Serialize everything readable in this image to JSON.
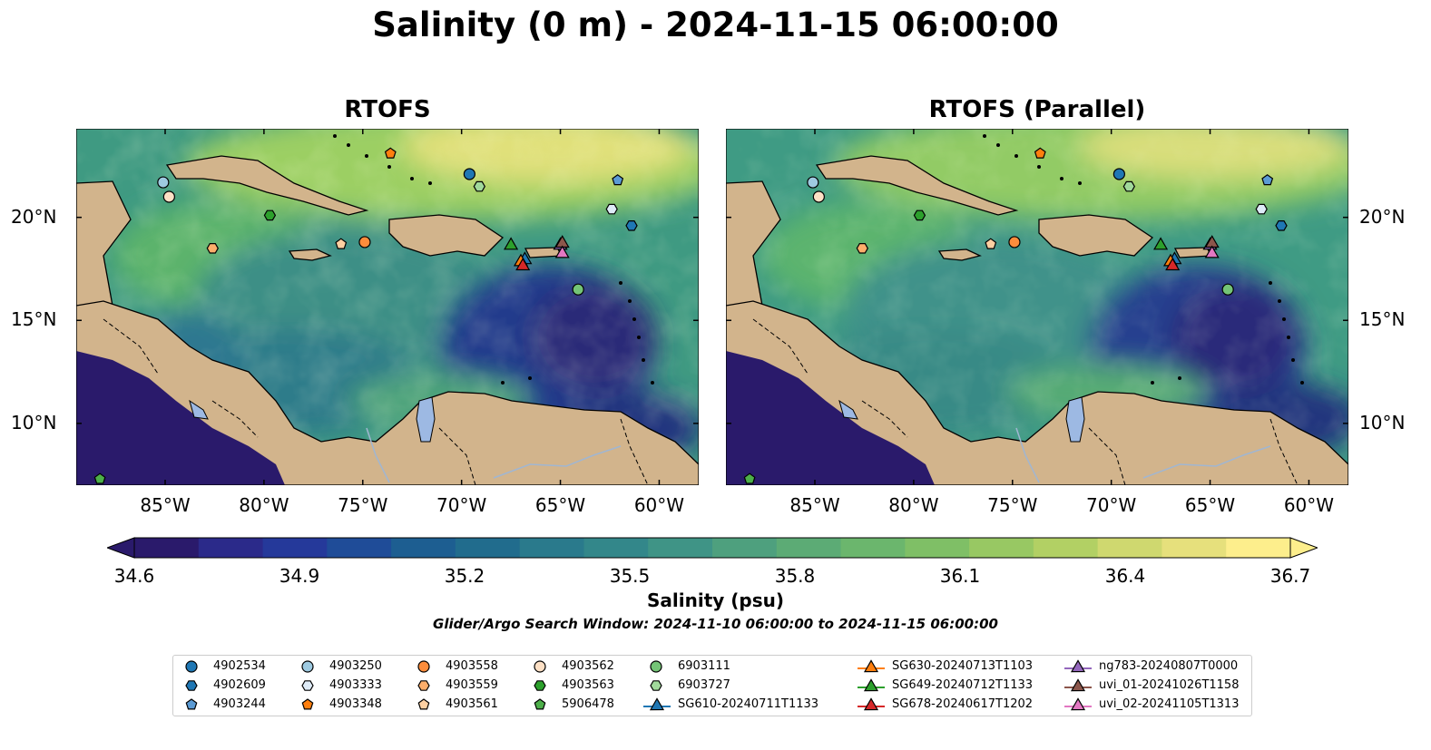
{
  "suptitle": "Salinity (0 m) - 2024-11-15 06:00:00",
  "panels": {
    "left_title": "RTOFS",
    "right_title": "RTOFS (Parallel)"
  },
  "axes": {
    "lon_labels": [
      "85°W",
      "80°W",
      "75°W",
      "70°W",
      "65°W",
      "60°W"
    ],
    "lat_labels": [
      "20°N",
      "15°N",
      "10°N"
    ],
    "lon_values": [
      -85,
      -80,
      -75,
      -70,
      -65,
      -60
    ],
    "lat_values": [
      20,
      15,
      10
    ],
    "lon_range": [
      -89.5,
      -58.0
    ],
    "lat_range": [
      7.0,
      24.3
    ]
  },
  "colorbar": {
    "label": "Salinity (psu)",
    "tick_labels": [
      "34.6",
      "34.9",
      "35.2",
      "35.5",
      "35.8",
      "36.1",
      "36.4",
      "36.7"
    ],
    "tick_values": [
      34.6,
      34.9,
      35.2,
      35.5,
      35.8,
      36.1,
      36.4,
      36.7
    ],
    "range": [
      34.6,
      36.7
    ],
    "colormap": "haline",
    "extend": "both"
  },
  "search_window": "Glider/Argo Search Window: 2024-11-10 06:00:00 to 2024-11-15 06:00:00",
  "colors": {
    "land": "#d2b48c",
    "lakes": "#9db9e3",
    "rivers": "#a0b6d2",
    "pacific_low": "#2a1a6b"
  },
  "chart_data": {
    "type": "heatmap",
    "title": "Salinity (0 m) - 2024-11-15 06:00:00",
    "variable": "Salinity (psu)",
    "xlim": [
      -89.5,
      -58.0
    ],
    "ylim": [
      7.0,
      24.3
    ],
    "legend_placement": "bottom",
    "platforms": [
      {
        "name": "4902534",
        "marker": "circle",
        "color": "#1f77b4",
        "lon": -69.6,
        "lat": 22.1
      },
      {
        "name": "4902609",
        "marker": "hexagon",
        "color": "#1f77b4",
        "lon": -61.4,
        "lat": 19.6
      },
      {
        "name": "4903244",
        "marker": "pentagon",
        "color": "#5b9bd5",
        "lon": -62.1,
        "lat": 21.8
      },
      {
        "name": "4903250",
        "marker": "circle",
        "color": "#9ecae1",
        "lon": -85.1,
        "lat": 21.7
      },
      {
        "name": "4903333",
        "marker": "hexagon",
        "color": "#deebf7",
        "lon": -62.4,
        "lat": 20.4
      },
      {
        "name": "4903348",
        "marker": "pentagon",
        "color": "#ff7f0e",
        "lon": -73.6,
        "lat": 23.1
      },
      {
        "name": "4903558",
        "marker": "circle",
        "color": "#fd8d3c",
        "lon": -74.9,
        "lat": 18.8
      },
      {
        "name": "4903559",
        "marker": "hexagon",
        "color": "#fdae6b",
        "lon": -82.6,
        "lat": 18.5
      },
      {
        "name": "4903561",
        "marker": "pentagon",
        "color": "#fdd0a2",
        "lon": -76.1,
        "lat": 18.7
      },
      {
        "name": "4903562",
        "marker": "circle",
        "color": "#fde0c5",
        "lon": -84.8,
        "lat": 21.0
      },
      {
        "name": "4903563",
        "marker": "hexagon",
        "color": "#2ca02c",
        "lon": -79.7,
        "lat": 20.1
      },
      {
        "name": "5906478",
        "marker": "pentagon",
        "color": "#4daf4a",
        "lon": -88.3,
        "lat": 7.3
      },
      {
        "name": "6903111",
        "marker": "circle",
        "color": "#74c476",
        "lon": -64.1,
        "lat": 16.5
      },
      {
        "name": "6903727",
        "marker": "hexagon",
        "color": "#a1d99b",
        "lon": -69.1,
        "lat": 21.5
      },
      {
        "name": "SG610-20240711T1133",
        "marker": "triangle",
        "color": "#1f77b4",
        "lon": -66.8,
        "lat": 18.0
      },
      {
        "name": "SG630-20240713T1103",
        "marker": "triangle",
        "color": "#ff7f0e",
        "lon": -67.0,
        "lat": 17.9
      },
      {
        "name": "SG649-20240712T1133",
        "marker": "triangle",
        "color": "#2ca02c",
        "lon": -67.5,
        "lat": 18.7
      },
      {
        "name": "SG678-20240617T1202",
        "marker": "triangle",
        "color": "#d62728",
        "lon": -66.9,
        "lat": 17.7
      },
      {
        "name": "ng783-20240807T0000",
        "marker": "triangle",
        "color": "#9467bd",
        "lon": -65.0,
        "lat": 18.7
      },
      {
        "name": "uvi_01-20241026T1158",
        "marker": "triangle",
        "color": "#8c564b",
        "lon": -64.9,
        "lat": 18.8
      },
      {
        "name": "uvi_02-20241105T1313",
        "marker": "triangle",
        "color": "#e377c2",
        "lon": -64.9,
        "lat": 18.3
      }
    ]
  }
}
